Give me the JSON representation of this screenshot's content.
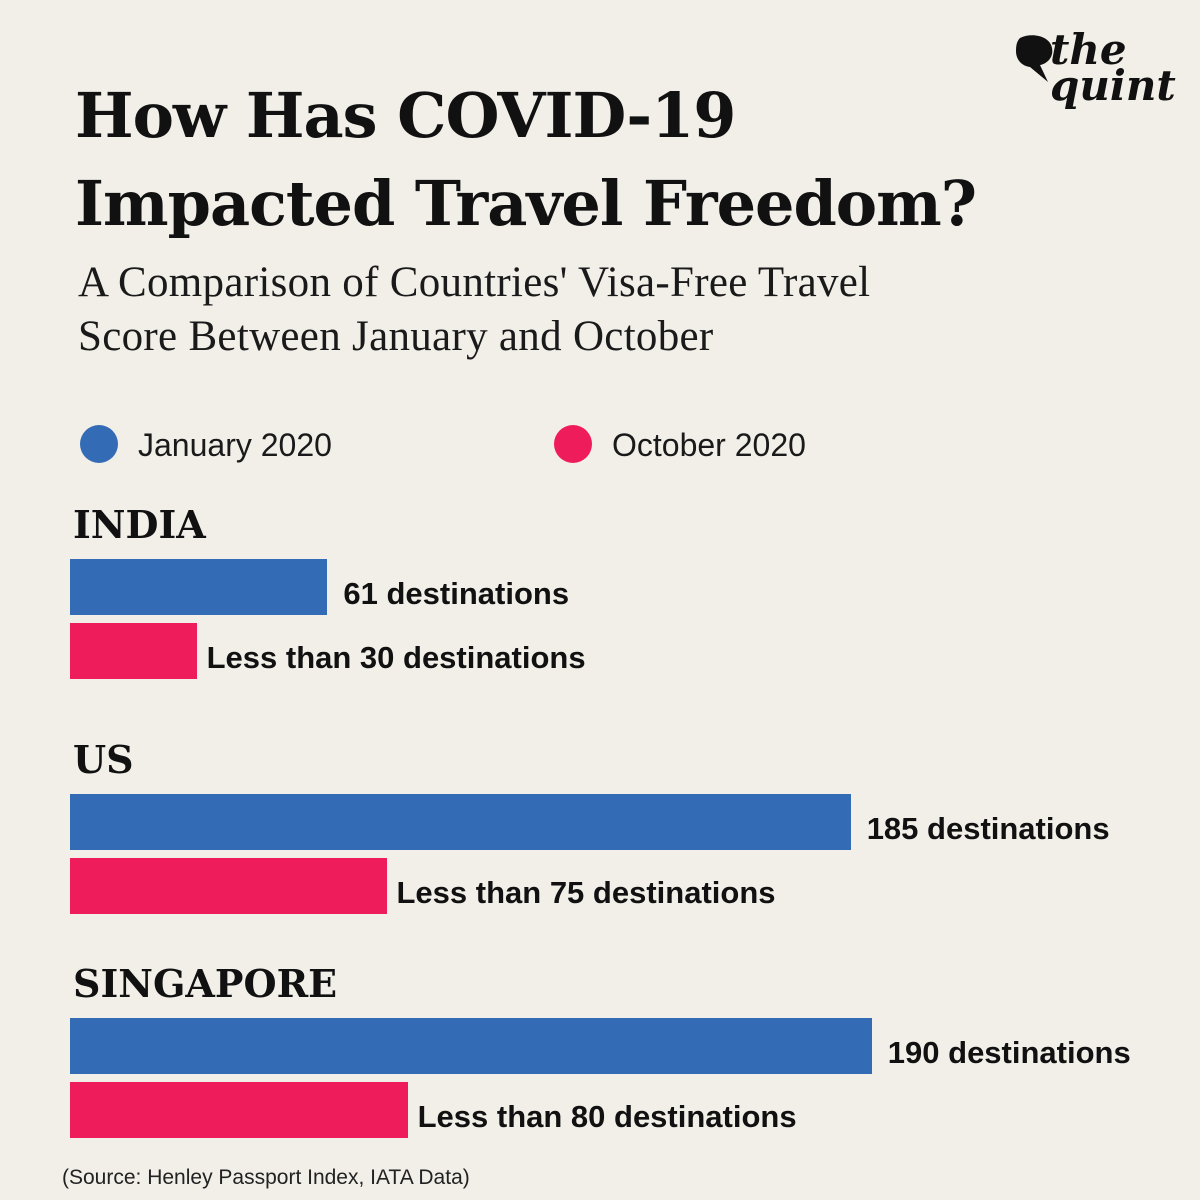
{
  "title": "How Has COVID-19 Impacted Travel Freedom?",
  "subtitle": "A Comparison of Countries' Visa-Free Travel Score Between January and October",
  "logo": {
    "text": "the\nquint",
    "icon": "speech-bubble-logo"
  },
  "source": "(Source: Henley Passport Index, IATA Data)",
  "colors": {
    "background": "#f2efe9",
    "january": "#336bb5",
    "october": "#ef1c5c"
  },
  "chart_data": {
    "type": "bar",
    "orientation": "horizontal",
    "categories": [
      "INDIA",
      "US",
      "SINGAPORE"
    ],
    "series": [
      {
        "name": "January 2020",
        "color": "#336bb5",
        "values": [
          61,
          185,
          190
        ],
        "labels": [
          "61 destinations",
          "185 destinations",
          "190 destinations"
        ]
      },
      {
        "name": "October 2020",
        "color": "#ef1c5c",
        "values": [
          30,
          75,
          80
        ],
        "labels": [
          "Less than 30 destinations",
          "Less than 75 destinations",
          "Less than 80 destinations"
        ]
      }
    ],
    "xlim": [
      0,
      190
    ],
    "grid": false,
    "legend": "top"
  }
}
